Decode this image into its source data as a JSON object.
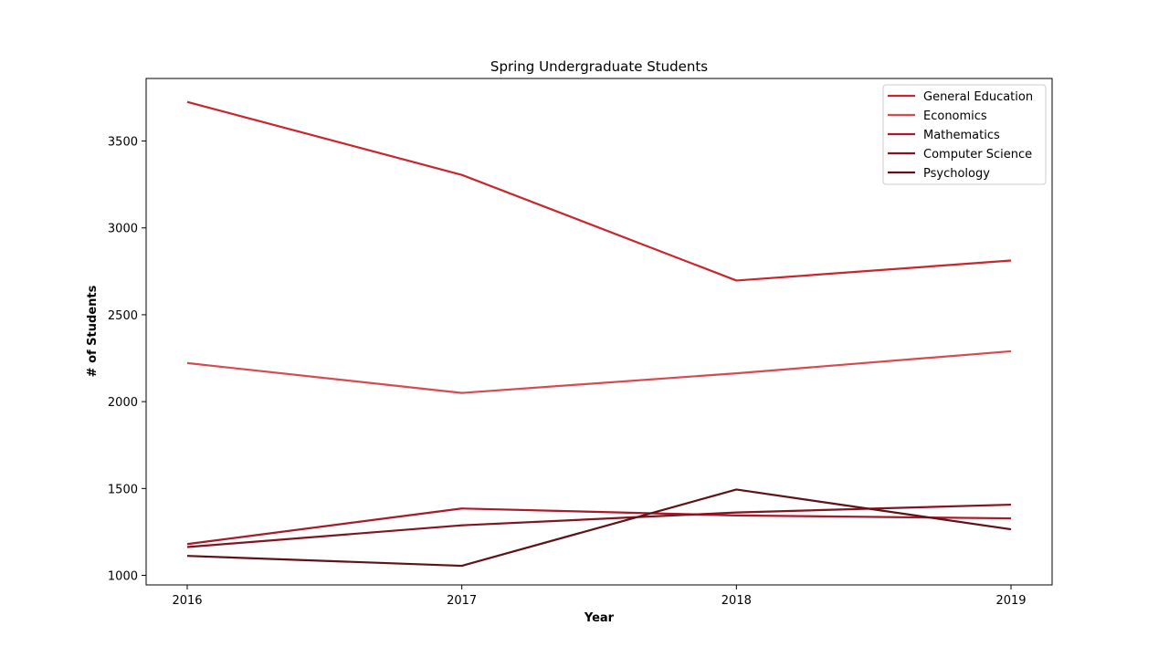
{
  "chart_data": {
    "type": "line",
    "title": "Spring Undergraduate Students",
    "xlabel": "Year",
    "ylabel": "# of Students",
    "x": [
      2016,
      2017,
      2018,
      2019
    ],
    "xticks": [
      "2016",
      "2017",
      "2018",
      "2019"
    ],
    "yticks": [
      1000,
      1500,
      2000,
      2500,
      3000,
      3500
    ],
    "ylim": [
      945,
      3860
    ],
    "grid": false,
    "legend_position": "top-right",
    "series": [
      {
        "name": "General Education",
        "color": "#c8262c",
        "values": [
          3725,
          3305,
          2697,
          2812
        ]
      },
      {
        "name": "Economics",
        "color": "#d64a50",
        "values": [
          2222,
          2050,
          2163,
          2290
        ]
      },
      {
        "name": "Mathematics",
        "color": "#a8192a",
        "values": [
          1180,
          1385,
          1345,
          1328
        ]
      },
      {
        "name": "Computer Science",
        "color": "#82141f",
        "values": [
          1163,
          1288,
          1362,
          1407
        ]
      },
      {
        "name": "Psychology",
        "color": "#5e1116",
        "values": [
          1112,
          1055,
          1494,
          1265
        ]
      }
    ]
  }
}
